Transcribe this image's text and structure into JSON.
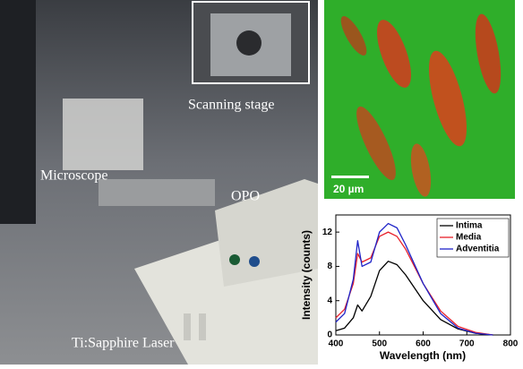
{
  "photo": {
    "stage_label": "Scanning stage",
    "microscope_label": "Microscope",
    "opo_label": "OPO",
    "laser_label": "Ti:Sapphire Laser",
    "scale_bar": "20 µm"
  },
  "chart_data": {
    "type": "line",
    "x_label": "Wavelength (nm)",
    "y_label": "Intensity (counts)",
    "x": [
      400,
      420,
      440,
      450,
      460,
      480,
      500,
      520,
      540,
      560,
      600,
      640,
      680,
      720,
      760
    ],
    "series": [
      {
        "name": "Intima",
        "color": "#000000",
        "values": [
          0.5,
          0.8,
          2,
          3.5,
          2.8,
          4.5,
          7.5,
          8.6,
          8.2,
          7,
          4,
          1.8,
          0.7,
          0.2,
          0
        ]
      },
      {
        "name": "Media",
        "color": "#e8202a",
        "values": [
          2,
          3,
          6,
          9.5,
          8.5,
          9,
          11.5,
          12,
          11.5,
          10,
          6,
          2.8,
          1,
          0.3,
          0
        ]
      },
      {
        "name": "Adventitia",
        "color": "#1f24c8",
        "values": [
          1.5,
          2.5,
          6.5,
          11,
          8,
          8.5,
          12,
          13,
          12.5,
          10.5,
          6,
          2.5,
          0.8,
          0.2,
          0
        ]
      }
    ],
    "xlim": [
      400,
      800
    ],
    "xticks": [
      400,
      500,
      600,
      700,
      800
    ],
    "ylim": [
      0,
      14
    ],
    "yticks": [
      0,
      4,
      8,
      12
    ],
    "legend": "upper-right"
  }
}
